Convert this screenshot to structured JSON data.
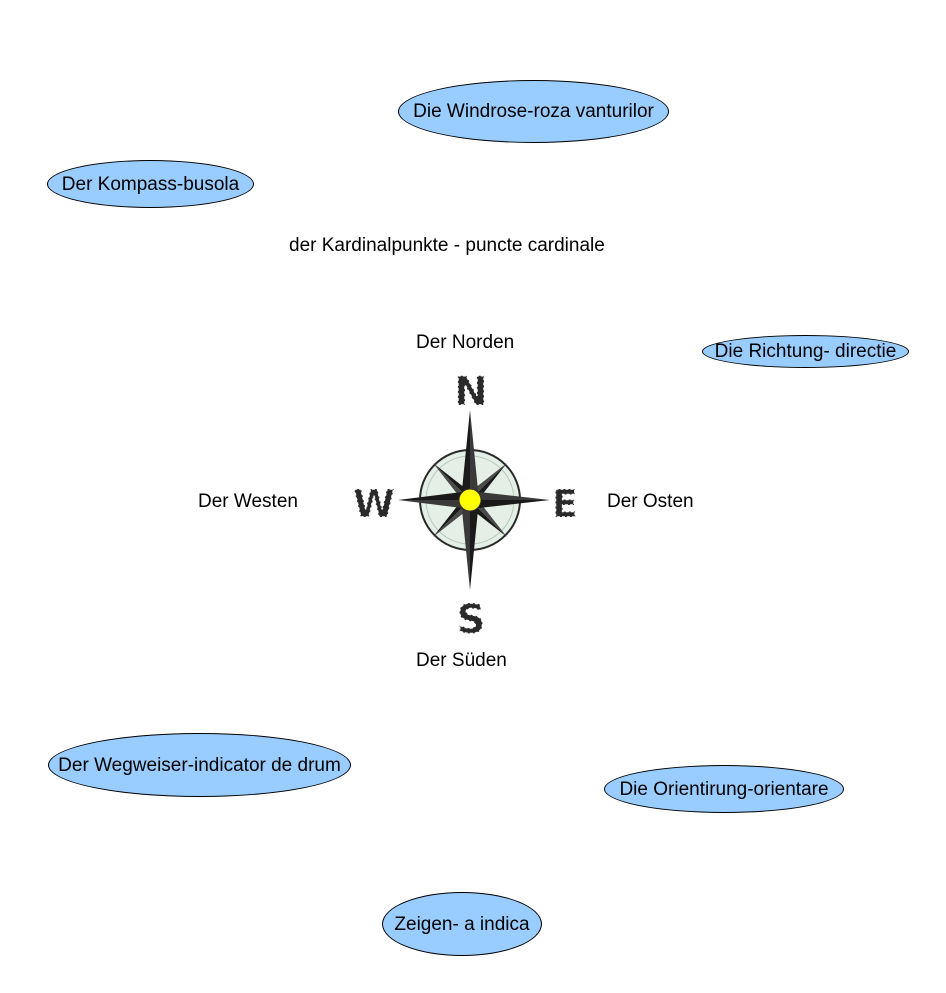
{
  "colors": {
    "bubble_fill": "#99ccff",
    "compass_ring": "#e4efe6",
    "compass_center": "#ffff00",
    "compass_star": "#1a1a1a"
  },
  "terms": {
    "windrose": "Die Windrose-roza vanturilor",
    "kompass": "Der Kompass-busola",
    "richtung": "Die Richtung- directie",
    "wegweiser": "Der Wegweiser-indicator de drum",
    "orientierung": "Die Orientirung-orientare",
    "zeigen": "Zeigen- a indica"
  },
  "cardinal": {
    "heading": "der Kardinalpunkte - puncte cardinale",
    "north": "Der Norden",
    "south": "Der Süden",
    "west": "Der Westen",
    "east": "Der Osten"
  },
  "compass": {
    "icon": "compass-rose-icon",
    "letters": {
      "n": "N",
      "s": "S",
      "w": "W",
      "e": "E"
    }
  }
}
